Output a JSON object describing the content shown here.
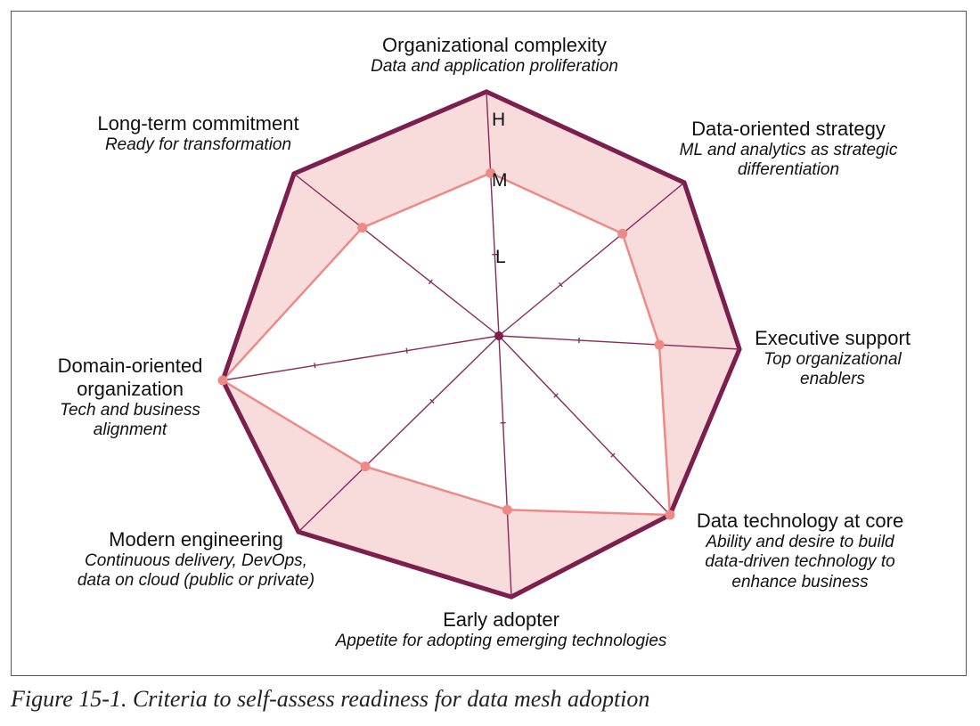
{
  "chart_data": {
    "type": "radar",
    "levels": [
      "L",
      "M",
      "H"
    ],
    "axes": [
      {
        "label": "Organizational complexity",
        "sublabel": "Data and application proliferation",
        "value": "M"
      },
      {
        "label": "Data-oriented strategy",
        "sublabel": "ML and analytics as strategic differentiation",
        "value": "M"
      },
      {
        "label": "Executive support",
        "sublabel": "Top organizational enablers",
        "value": "M"
      },
      {
        "label": "Data technology at core",
        "sublabel": "Ability and desire to build data-driven technology to enhance business",
        "value": "H"
      },
      {
        "label": "Early adopter",
        "sublabel": "Appetite for adopting emerging technologies",
        "value": "M"
      },
      {
        "label": "Modern engineering",
        "sublabel": "Continuous delivery, DevOps, data on cloud (public or private)",
        "value": "M"
      },
      {
        "label": "Domain-oriented organization",
        "sublabel": "Tech and business alignment",
        "value": "H"
      },
      {
        "label": "Long-term commitment",
        "sublabel": "Ready for transformation",
        "value": "M"
      }
    ],
    "colors": {
      "outline": "#7a1f4e",
      "fill": "#f6d0cf",
      "marker": "#ee8a86",
      "spoke": "#8a2a5a"
    }
  },
  "labels": {
    "organizational_complexity": {
      "title": "Organizational complexity",
      "subtitle": "Data and application proliferation"
    },
    "data_oriented_strategy": {
      "title": "Data-oriented strategy",
      "subtitle_line1": "ML and analytics as strategic",
      "subtitle_line2": "differentiation"
    },
    "executive_support": {
      "title": "Executive support",
      "subtitle_line1": "Top organizational",
      "subtitle_line2": "enablers"
    },
    "data_technology": {
      "title": "Data technology at core",
      "subtitle_line1": "Ability and desire to build",
      "subtitle_line2": "data-driven technology to",
      "subtitle_line3": "enhance business"
    },
    "early_adopter": {
      "title": "Early adopter",
      "subtitle": "Appetite for adopting emerging technologies"
    },
    "modern_engineering": {
      "title": "Modern engineering",
      "subtitle_line1": "Continuous delivery, DevOps,",
      "subtitle_line2": "data on cloud (public or private)"
    },
    "domain_oriented": {
      "title_line1": "Domain-oriented",
      "title_line2": "organization",
      "subtitle_line1": "Tech and business",
      "subtitle_line2": "alignment"
    },
    "long_term": {
      "title": "Long-term commitment",
      "subtitle": "Ready for transformation"
    }
  },
  "level_labels": {
    "h": "H",
    "m": "M",
    "l": "L"
  },
  "caption": "Figure 15-1. Criteria to self-assess readiness for data mesh adoption"
}
